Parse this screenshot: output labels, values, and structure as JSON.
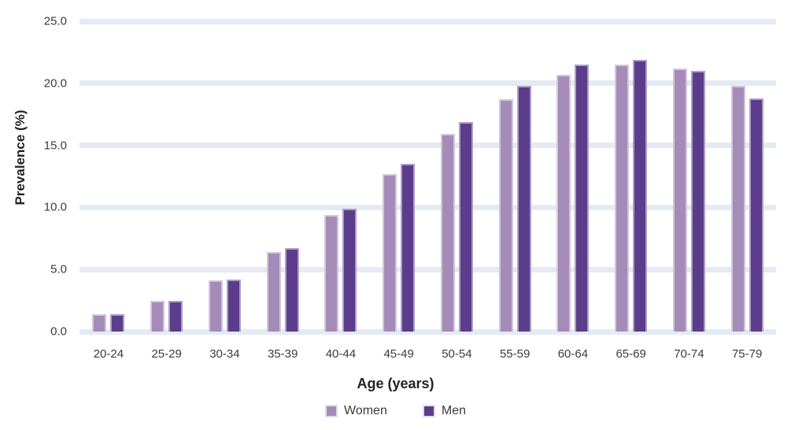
{
  "chart_data": {
    "type": "bar",
    "title": "",
    "xlabel": "Age (years)",
    "ylabel": "Prevalence (%)",
    "ylim": [
      0,
      25
    ],
    "yticks": [
      0,
      5,
      10,
      15,
      20,
      25
    ],
    "ytick_labels": [
      "0.0",
      "5.0",
      "10.0",
      "15.0",
      "20.0",
      "25.0"
    ],
    "categories": [
      "20-24",
      "25-29",
      "30-34",
      "35-39",
      "40-44",
      "45-49",
      "50-54",
      "55-59",
      "60-64",
      "65-69",
      "70-74",
      "75-79"
    ],
    "series": [
      {
        "name": "Women",
        "color": "#a58cb8",
        "values": [
          1.4,
          2.5,
          4.1,
          6.4,
          9.4,
          12.7,
          15.9,
          18.7,
          20.7,
          21.5,
          21.2,
          19.8
        ]
      },
      {
        "name": "Men",
        "color": "#5b3d8c",
        "values": [
          1.4,
          2.5,
          4.2,
          6.7,
          9.9,
          13.5,
          16.9,
          19.8,
          21.5,
          21.9,
          21.0,
          18.8
        ]
      }
    ],
    "grid": true,
    "gridline_color": "#e4ebf2",
    "background": "#ffffff",
    "legend_position": "bottom"
  }
}
